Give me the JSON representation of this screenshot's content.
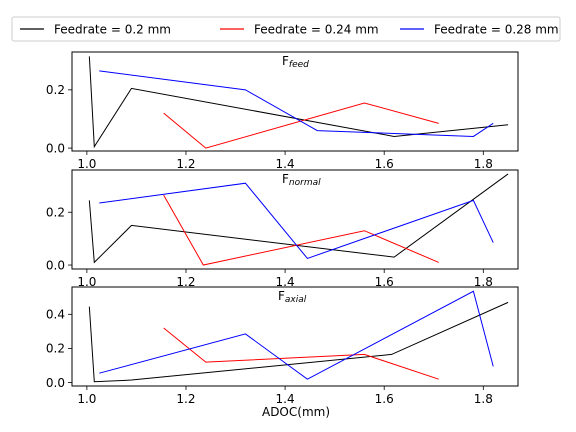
{
  "chart_data": {
    "type": "line",
    "xlabel": "ADOC(mm)",
    "xlim": [
      0.97,
      1.87
    ],
    "xticks": [
      1.0,
      1.2,
      1.4,
      1.6,
      1.8
    ],
    "legend": {
      "placement": "top",
      "entries": [
        "Feedrate = 0.2 mm",
        "Feedrate = 0.24 mm",
        "Feedrate = 0.28 mm"
      ]
    },
    "colors": [
      "#000000",
      "#ff0000",
      "#0000ff"
    ],
    "panels": [
      {
        "title_main": "F",
        "title_sub": "feed",
        "ylim": [
          -0.01,
          0.33
        ],
        "yticks": [
          0.0,
          0.2
        ],
        "series": [
          {
            "name": "Feedrate = 0.2 mm",
            "x": [
              1.005,
              1.015,
              1.09,
              1.62,
              1.85
            ],
            "y": [
              0.315,
              0.005,
              0.205,
              0.04,
              0.08
            ]
          },
          {
            "name": "Feedrate = 0.24 mm",
            "x": [
              1.155,
              1.24,
              1.56,
              1.71
            ],
            "y": [
              0.12,
              0.0,
              0.155,
              0.085
            ]
          },
          {
            "name": "Feedrate = 0.28 mm",
            "x": [
              1.025,
              1.32,
              1.465,
              1.78,
              1.82
            ],
            "y": [
              0.265,
              0.2,
              0.06,
              0.04,
              0.085
            ]
          }
        ]
      },
      {
        "title_main": "F",
        "title_sub": "normal",
        "ylim": [
          -0.015,
          0.36
        ],
        "yticks": [
          0.0,
          0.2
        ],
        "series": [
          {
            "name": "Feedrate = 0.2 mm",
            "x": [
              1.005,
              1.015,
              1.09,
              1.62,
              1.85
            ],
            "y": [
              0.245,
              0.01,
              0.15,
              0.03,
              0.345
            ]
          },
          {
            "name": "Feedrate = 0.24 mm",
            "x": [
              1.155,
              1.235,
              1.56,
              1.71
            ],
            "y": [
              0.265,
              0.0,
              0.13,
              0.01
            ]
          },
          {
            "name": "Feedrate = 0.28 mm",
            "x": [
              1.025,
              1.32,
              1.445,
              1.78,
              1.82
            ],
            "y": [
              0.235,
              0.31,
              0.025,
              0.245,
              0.085
            ]
          }
        ]
      },
      {
        "title_main": "F",
        "title_sub": "axial",
        "ylim": [
          -0.02,
          0.56
        ],
        "yticks": [
          0.0,
          0.2,
          0.4
        ],
        "series": [
          {
            "name": "Feedrate = 0.2 mm",
            "x": [
              1.005,
              1.015,
              1.09,
              1.615,
              1.85
            ],
            "y": [
              0.445,
              0.005,
              0.015,
              0.165,
              0.47
            ]
          },
          {
            "name": "Feedrate = 0.24 mm",
            "x": [
              1.155,
              1.24,
              1.56,
              1.71
            ],
            "y": [
              0.32,
              0.12,
              0.165,
              0.02
            ]
          },
          {
            "name": "Feedrate = 0.28 mm",
            "x": [
              1.025,
              1.32,
              1.445,
              1.78,
              1.82
            ],
            "y": [
              0.055,
              0.285,
              0.02,
              0.535,
              0.095
            ]
          }
        ]
      }
    ]
  }
}
